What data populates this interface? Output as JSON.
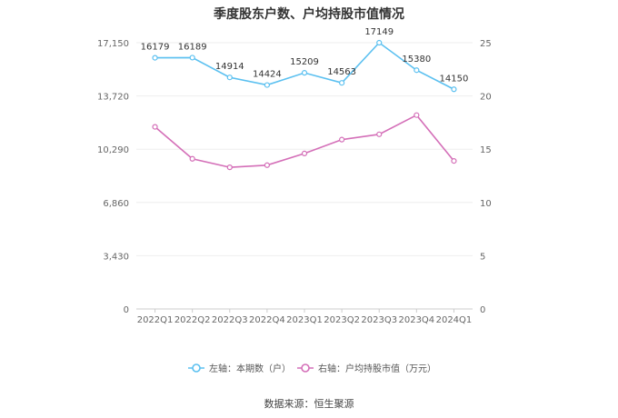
{
  "chart_data": {
    "type": "line",
    "title": "季度股东户数、户均持股市值情况",
    "categories": [
      "2022Q1",
      "2022Q2",
      "2022Q3",
      "2022Q4",
      "2023Q1",
      "2023Q2",
      "2023Q3",
      "2023Q4",
      "2024Q1"
    ],
    "left_axis": {
      "ticks": [
        "0",
        "3,430",
        "6,860",
        "10,290",
        "13,720",
        "17,150"
      ],
      "ylim": [
        0,
        17150
      ]
    },
    "right_axis": {
      "ticks": [
        "0",
        "5",
        "10",
        "15",
        "20",
        "25"
      ],
      "ylim": [
        0,
        25
      ]
    },
    "series": [
      {
        "name": "左轴：本期数（户）",
        "axis": "left",
        "color": "#5bc0f0",
        "values": [
          16179,
          16189,
          14914,
          14424,
          15209,
          14563,
          17149,
          15380,
          14150
        ],
        "labels": [
          "16179",
          "16189",
          "14914",
          "14424",
          "15209",
          "14563",
          "17149",
          "15380",
          "14150"
        ]
      },
      {
        "name": "右轴：户均持股市值（万元）",
        "axis": "right",
        "color": "#d46fb8",
        "values": [
          17.1,
          14.1,
          13.3,
          13.5,
          14.6,
          15.9,
          16.4,
          18.2,
          13.9
        ]
      }
    ],
    "grid": true,
    "legend_position": "bottom"
  },
  "source": "数据来源：恒生聚源"
}
